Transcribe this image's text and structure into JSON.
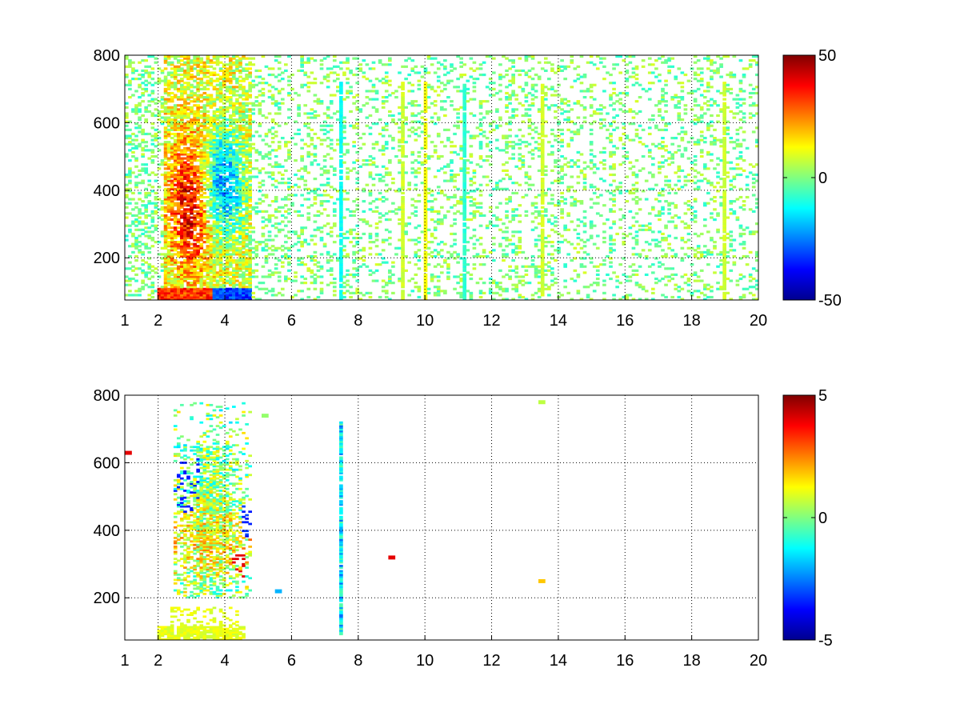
{
  "chart_data": [
    {
      "type": "heatmap",
      "title": "",
      "xlabel": "",
      "ylabel": "",
      "xlim": [
        1,
        20
      ],
      "ylim": [
        75,
        800
      ],
      "x_scale": "linear",
      "x_ticks": [
        1,
        2,
        4,
        6,
        8,
        10,
        12,
        14,
        16,
        18,
        20
      ],
      "y_ticks": [
        200,
        400,
        600,
        800
      ],
      "x_tick_labels": [
        "1",
        "2",
        "4",
        "6",
        "8",
        "10",
        "12",
        "14",
        "16",
        "18",
        "20"
      ],
      "y_tick_labels": [
        "200",
        "400",
        "600",
        "800"
      ],
      "grid": true,
      "colormap": "jet",
      "colorbar": {
        "range": [
          -50,
          50
        ],
        "tick_labels": [
          "50",
          "0",
          "-50"
        ]
      },
      "features": [
        {
          "description": "dense signal region",
          "x_range": [
            2.2,
            4.8
          ],
          "y_range": [
            80,
            800
          ]
        },
        {
          "description": "positive cluster",
          "x": 3.0,
          "y": 350,
          "value": 30
        },
        {
          "description": "negative band",
          "x": 3.9,
          "y": 420,
          "value": -30
        },
        {
          "description": "bottom band",
          "x_range": [
            2.0,
            4.8
          ],
          "y": 90,
          "values": [
            40,
            -40
          ]
        },
        {
          "description": "vertical streaks",
          "x": [
            7.5,
            9.3,
            10.0,
            11.2,
            13.5,
            19.0
          ]
        }
      ]
    },
    {
      "type": "heatmap",
      "title": "",
      "xlabel": "",
      "ylabel": "",
      "xlim": [
        1,
        20
      ],
      "ylim": [
        75,
        800
      ],
      "x_scale": "linear",
      "x_ticks": [
        1,
        2,
        4,
        6,
        8,
        10,
        12,
        14,
        16,
        18,
        20
      ],
      "y_ticks": [
        200,
        400,
        600,
        800
      ],
      "x_tick_labels": [
        "1",
        "2",
        "4",
        "6",
        "8",
        "10",
        "12",
        "14",
        "16",
        "18",
        "20"
      ],
      "y_tick_labels": [
        "200",
        "400",
        "600",
        "800"
      ],
      "grid": true,
      "colormap": "jet",
      "colorbar": {
        "range": [
          -5,
          5
        ],
        "tick_labels": [
          "5",
          "0",
          "-5"
        ]
      },
      "features": [
        {
          "description": "dense signal region",
          "x_range": [
            2.5,
            4.8
          ],
          "y_range": [
            200,
            780
          ]
        },
        {
          "description": "bottom band",
          "x_range": [
            2.0,
            4.6
          ],
          "y": 90,
          "value": 1
        },
        {
          "description": "vertical streak",
          "x": 7.5,
          "y_range": [
            90,
            720
          ]
        },
        {
          "description": "isolated points",
          "points": [
            [
              13.5,
              780
            ],
            [
              13.5,
              250
            ],
            [
              9.0,
              320
            ],
            [
              5.6,
              220
            ]
          ]
        }
      ]
    }
  ]
}
